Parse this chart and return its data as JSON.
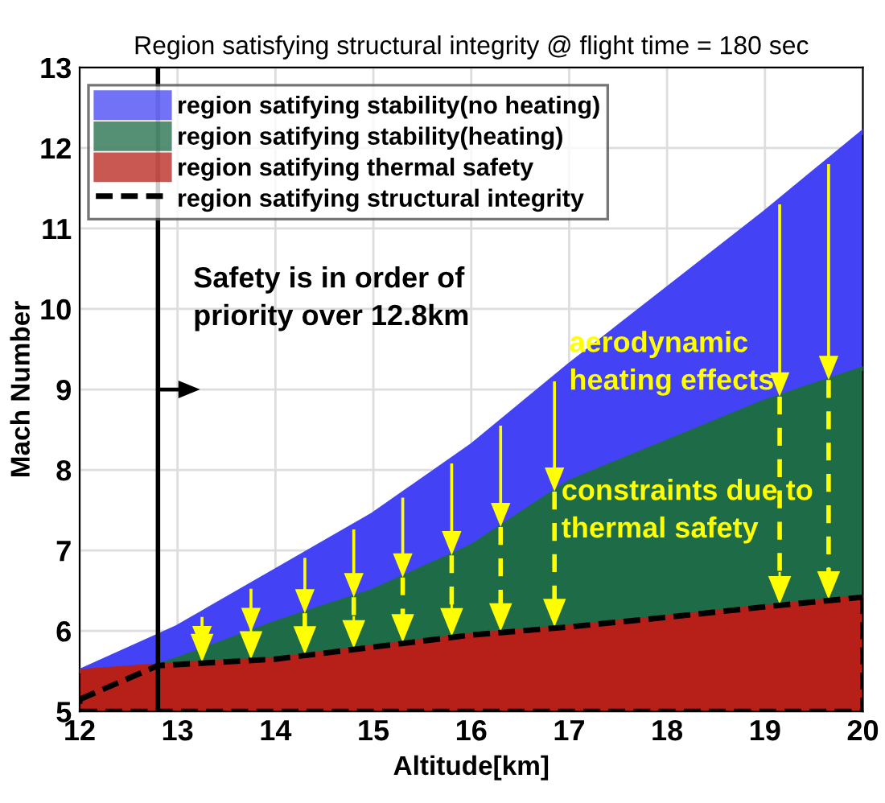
{
  "chart_data": {
    "type": "area",
    "title": "Region satisfying structural integrity @ flight time = 180 sec",
    "xlabel": "Altitude[km]",
    "ylabel": "Mach Number",
    "series": [
      {
        "name": "region satifying stability(no heating)",
        "color": "#4343f5",
        "x": [
          12,
          12.8,
          13,
          14,
          15,
          16,
          17,
          18,
          19,
          20
        ],
        "values": [
          5.5,
          5.94,
          6.05,
          6.75,
          7.45,
          8.3,
          9.3,
          10.25,
          11.2,
          12.2
        ]
      },
      {
        "name": "region satifying stability(heating)",
        "color": "#1d6b47",
        "x": [
          12.8,
          13,
          14,
          15,
          16,
          17,
          18,
          19,
          20
        ],
        "values": [
          5.57,
          5.65,
          6.1,
          6.5,
          7.05,
          7.85,
          8.35,
          8.85,
          9.26
        ]
      },
      {
        "name": "region satifying thermal safety",
        "color": "#b71f19",
        "x": [
          12,
          12.8,
          14,
          15,
          16,
          17,
          18,
          19,
          20
        ],
        "values": [
          5.5,
          5.57,
          5.65,
          5.8,
          5.95,
          6.05,
          6.17,
          6.3,
          6.42
        ]
      },
      {
        "name": "region satifying structural integrity",
        "type": "line",
        "line_style": "dashed",
        "color": "#000000",
        "x": [
          12,
          12.8,
          14,
          15,
          16,
          17,
          18,
          19,
          20
        ],
        "values": [
          5.15,
          5.57,
          5.65,
          5.8,
          5.95,
          6.05,
          6.17,
          6.3,
          6.42
        ]
      }
    ],
    "ref_lines": [
      {
        "axis": "x",
        "value": 12.8,
        "color": "#000000"
      }
    ],
    "annotations": [
      "Safety is in order of\npriority over 12.8km",
      {
        "text": "aerodynamic\nheating effects",
        "x": 19.15,
        "y": 8.91
      },
      {
        "text": "constraints due to\nthermal safety",
        "x": 16.85,
        "y": 7.73
      }
    ],
    "xlim": [
      12,
      20
    ],
    "ylim": [
      5,
      13
    ],
    "xticks": [
      12,
      13,
      14,
      15,
      16,
      17,
      18,
      19,
      20
    ],
    "yticks": [
      5,
      6,
      7,
      8,
      9,
      10,
      11,
      12,
      13
    ],
    "grid": true,
    "legend": "top left"
  }
}
